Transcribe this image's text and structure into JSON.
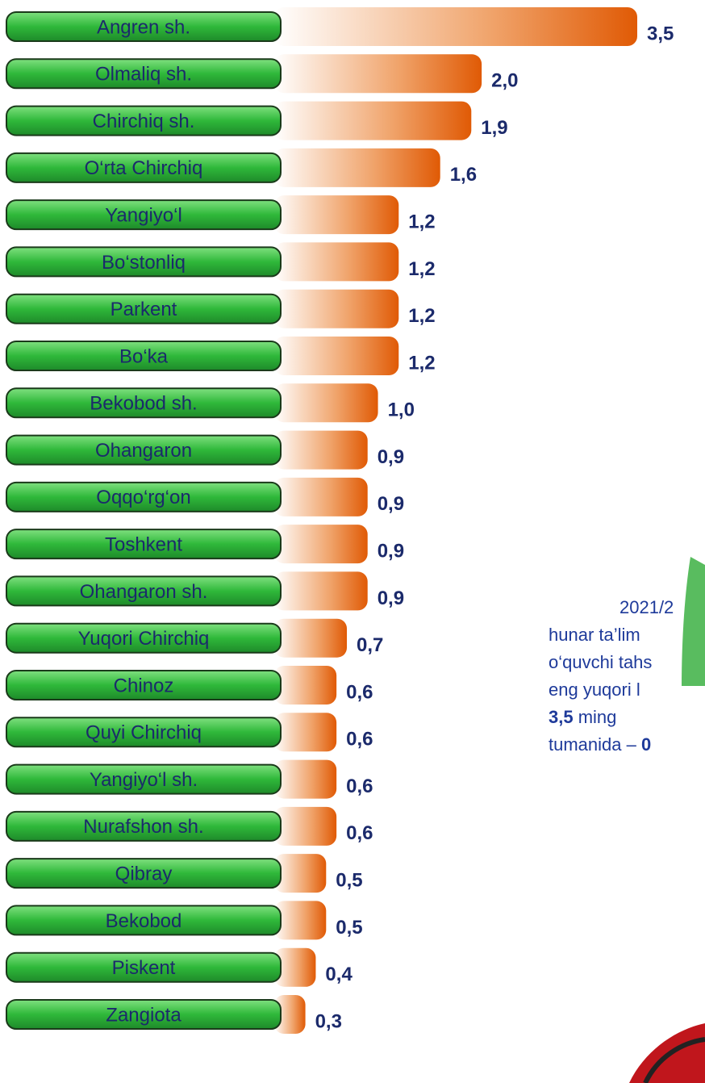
{
  "chart_data": {
    "type": "bar",
    "orientation": "horizontal",
    "categories": [
      "Angren sh.",
      "Olmaliq sh.",
      "Chirchiq sh.",
      "O‘rta Chirchiq",
      "Yangiyo‘l",
      "Bo‘stonliq",
      "Parkent",
      "Bo‘ka",
      "Bekobod sh.",
      "Ohangaron",
      "Oqqo‘rg‘on",
      "Toshkent",
      "Ohangaron sh.",
      "Yuqori Chirchiq",
      "Chinoz",
      "Quyi Chirchiq",
      "Yangiyo‘l sh.",
      "Nurafshon sh.",
      "Qibray",
      "Bekobod",
      "Piskent",
      "Zangiota"
    ],
    "values": [
      3.5,
      2.0,
      1.9,
      1.6,
      1.2,
      1.2,
      1.2,
      1.2,
      1.0,
      0.9,
      0.9,
      0.9,
      0.9,
      0.7,
      0.6,
      0.6,
      0.6,
      0.6,
      0.5,
      0.5,
      0.4,
      0.3
    ],
    "value_labels": [
      "3,5",
      "2,0",
      "1,9",
      "1,6",
      "1,2",
      "1,2",
      "1,2",
      "1,2",
      "1,0",
      "0,9",
      "0,9",
      "0,9",
      "0,9",
      "0,7",
      "0,6",
      "0,6",
      "0,6",
      "0,6",
      "0,5",
      "0,5",
      "0,4",
      "0,3"
    ],
    "color": "#e05a05",
    "annotation": [
      [
        {
          "text": "2021/2"
        }
      ],
      [
        {
          "text": "hunar ta’lim"
        }
      ],
      [
        {
          "text": "o‘quvchi tahs"
        }
      ],
      [
        {
          "text": "eng yuqori l"
        }
      ],
      [
        {
          "text": "3,5",
          "bold": true
        },
        {
          "text": " ming"
        }
      ],
      [
        {
          "text": "tumanida – "
        },
        {
          "text": "0",
          "bold": true
        }
      ]
    ]
  }
}
